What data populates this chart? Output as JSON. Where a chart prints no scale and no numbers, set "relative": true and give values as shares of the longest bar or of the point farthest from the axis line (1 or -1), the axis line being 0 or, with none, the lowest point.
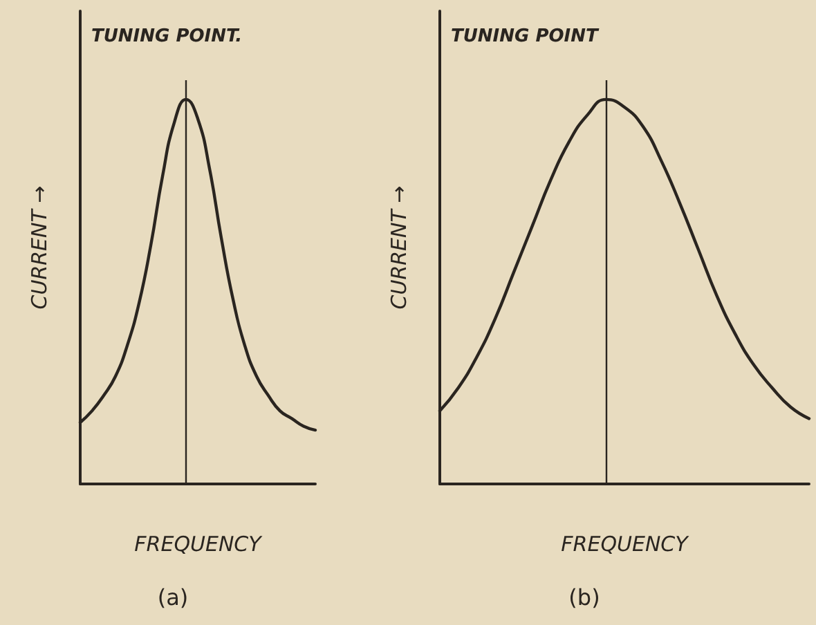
{
  "chart_data": [
    {
      "type": "line",
      "relative": true,
      "xlabel": "FREQUENCY",
      "ylabel": "CURRENT →",
      "marker": "none",
      "line_style": "solid",
      "categories": [
        null,
        null,
        null,
        null,
        null,
        null,
        null,
        null,
        null,
        null,
        null,
        null,
        null,
        null,
        null,
        null,
        null,
        null,
        null,
        null,
        null
      ],
      "series": [
        {
          "color": "#2a2520",
          "values": [
            0.16,
            0.19,
            0.23,
            0.28,
            0.36,
            0.47,
            0.62,
            0.8,
            0.94,
            1.0,
            0.95,
            0.82,
            0.64,
            0.48,
            0.36,
            0.28,
            0.23,
            0.19,
            0.17,
            0.15,
            0.14
          ]
        }
      ],
      "annotations": [
        "TUNING POINT.",
        "(a)"
      ]
    },
    {
      "type": "line",
      "relative": true,
      "xlabel": "FREQUENCY",
      "ylabel": "CURRENT →",
      "marker": "none",
      "line_style": "solid",
      "categories": [
        null,
        null,
        null,
        null,
        null,
        null,
        null,
        null,
        null,
        null,
        null,
        null,
        null,
        null,
        null,
        null,
        null,
        null,
        null,
        null,
        null
      ],
      "series": [
        {
          "color": "#2a2520",
          "values": [
            0.19,
            0.25,
            0.33,
            0.43,
            0.55,
            0.67,
            0.79,
            0.89,
            0.96,
            1.0,
            0.98,
            0.93,
            0.84,
            0.73,
            0.61,
            0.49,
            0.39,
            0.31,
            0.25,
            0.2,
            0.17
          ]
        }
      ],
      "annotations": [
        "TUNING POINT",
        "(b)"
      ]
    }
  ]
}
